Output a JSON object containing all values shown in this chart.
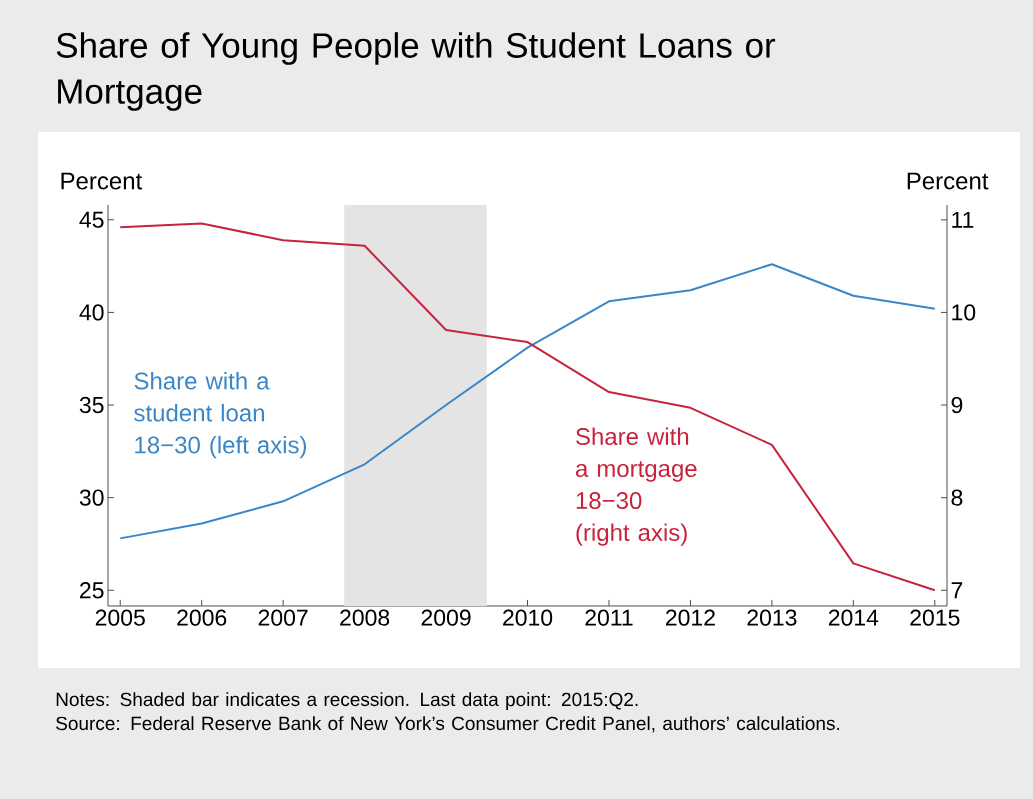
{
  "chart_data": {
    "type": "line",
    "title": "Share of Young People with Student Loans or Mortgage",
    "ylabel": "Percent",
    "y2label": "Percent",
    "x": [
      2005,
      2006,
      2007,
      2008,
      2009,
      2010,
      2011,
      2012,
      2013,
      2014,
      2015
    ],
    "series": [
      {
        "name": "Share with a student loan 18−30 (left axis)",
        "color": "#3a86c8",
        "values": [
          27.8,
          28.6,
          29.8,
          31.8,
          35.0,
          38.1,
          40.6,
          41.2,
          42.6,
          40.9,
          40.2
        ]
      },
      {
        "name": "Share with a mortgage 18−30 (right axis)",
        "color": "#c8223c",
        "axis": "y2",
        "values": [
          10.92,
          10.96,
          10.78,
          10.72,
          9.81,
          9.68,
          9.14,
          8.97,
          8.57,
          7.29,
          7.0
        ]
      }
    ],
    "xlim": [
      2004.85,
      2015.15
    ],
    "xticks": [
      2005,
      2006,
      2007,
      2008,
      2009,
      2010,
      2011,
      2012,
      2013,
      2014,
      2015
    ],
    "ylim": [
      24.15,
      45.8
    ],
    "yticks": [
      25,
      30,
      35,
      40,
      45
    ],
    "y2lim": [
      6.83,
      11.16
    ],
    "y2ticks": [
      7,
      8,
      9,
      10,
      11
    ],
    "bands": [
      {
        "axis": "x",
        "from": 2007.75,
        "to": 2009.5,
        "color": "#e4e4e4"
      }
    ],
    "grid": false,
    "annotations": [
      "Notes: Shaded bar indicates a recession. Last data point: 2015:Q2.",
      "Source: Federal Reserve Bank of New York’s Consumer Credit Panel, authors’ calculations."
    ]
  }
}
